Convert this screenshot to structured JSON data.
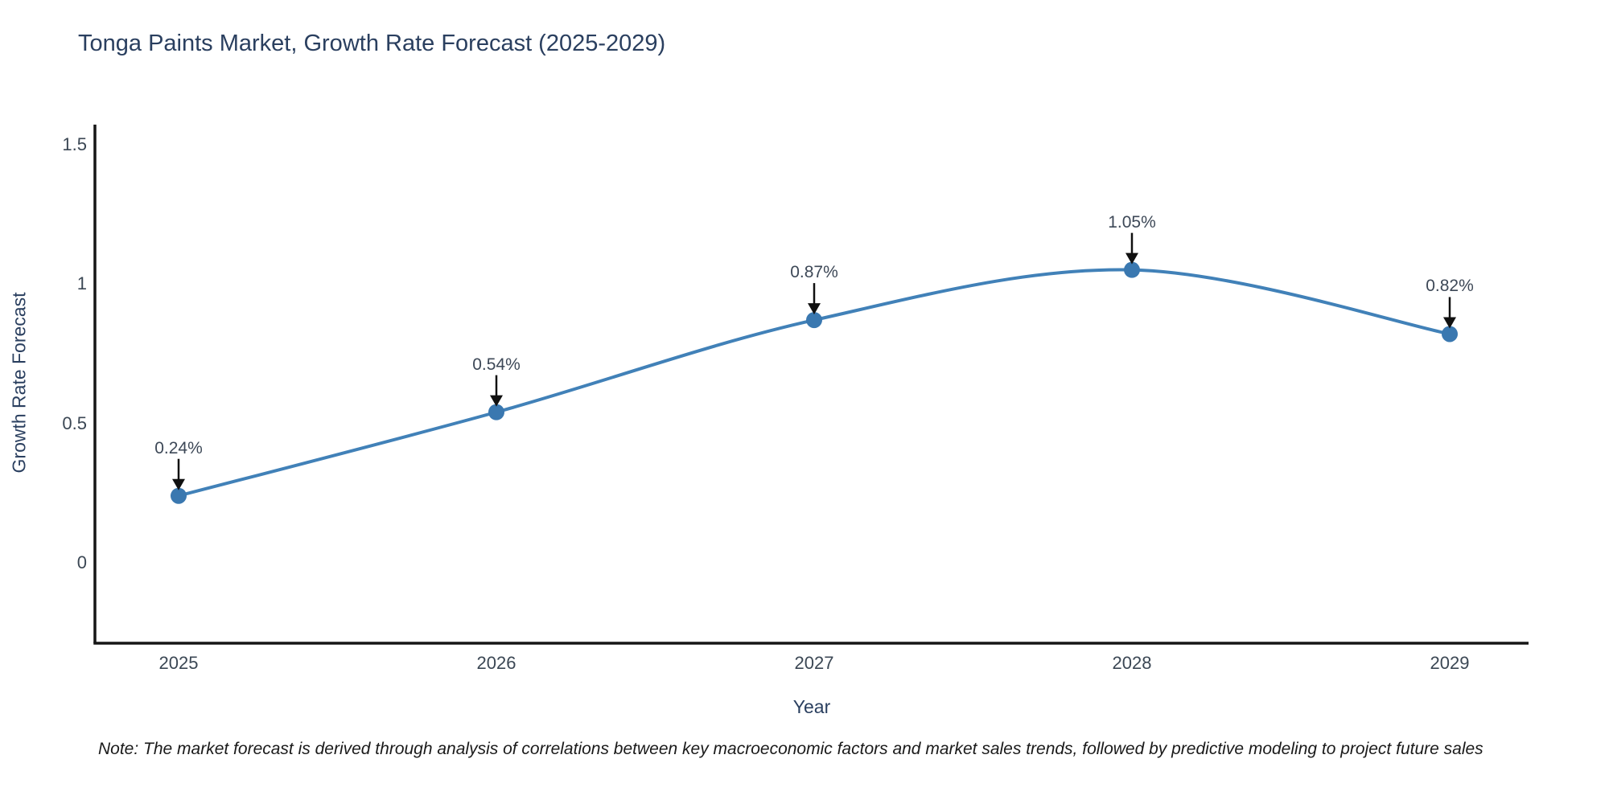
{
  "chart_data": {
    "type": "line",
    "curve": "spline",
    "title": "Tonga Paints Market, Growth Rate Forecast (2025-2029)",
    "xlabel": "Year",
    "ylabel": "Growth Rate Forecast",
    "categories": [
      "2025",
      "2026",
      "2027",
      "2028",
      "2029"
    ],
    "series": [
      {
        "name": "Growth Rate Forecast",
        "values": [
          0.24,
          0.54,
          0.87,
          1.05,
          0.82
        ],
        "labels": [
          "0.24%",
          "0.54%",
          "0.87%",
          "1.05%",
          "0.82%"
        ]
      }
    ],
    "ytick_labels": [
      "0",
      "0.5",
      "1",
      "1.5"
    ],
    "ytick_values": [
      0,
      0.5,
      1,
      1.5
    ],
    "ylim": [
      -0.29,
      1.57
    ],
    "grid": false,
    "legend_position": "none",
    "annotations_have_arrows": true,
    "colors": {
      "line": "#4181b8",
      "marker": "#3a78b0",
      "arrow": "#101010",
      "axis": "#161616",
      "title_text": "#2a3f5f",
      "tick_text": "#3b4754",
      "annotation_text": "#3d4857",
      "note_text": "#1a1a1a",
      "background": "#ffffff"
    }
  },
  "note": {
    "text": "Note: The market forecast is derived through analysis of correlations between key macroeconomic factors and market sales trends, followed by predictive modeling to project future sales"
  }
}
